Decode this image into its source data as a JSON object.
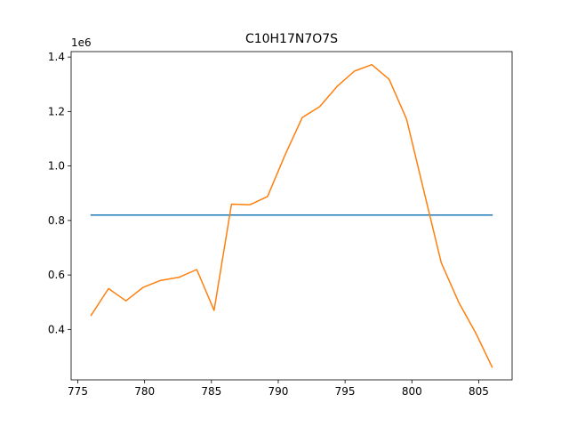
{
  "chart_data": {
    "type": "line",
    "title": "C10H17N7O7S",
    "xlabel": "",
    "ylabel": "",
    "y_offset_label": "1e6",
    "xlim": [
      774.5,
      807.5
    ],
    "ylim": [
      0.215,
      1.42
    ],
    "x_ticks": [
      775,
      780,
      785,
      790,
      795,
      800,
      805
    ],
    "y_ticks": [
      0.4,
      0.6,
      0.8,
      1.0,
      1.2,
      1.4
    ],
    "y_tick_labels": [
      "0.4",
      "0.6",
      "0.8",
      "1.0",
      "1.2",
      "1.4"
    ],
    "grid": false,
    "series": [
      {
        "color": "#1f77b4",
        "x": [
          776.0,
          806.0
        ],
        "y": [
          0.82,
          0.82
        ]
      },
      {
        "color": "#ff7f0e",
        "x": [
          776.0,
          777.3,
          778.6,
          779.9,
          781.2,
          782.6,
          783.9,
          785.2,
          786.5,
          787.9,
          789.2,
          790.5,
          791.8,
          793.1,
          794.4,
          795.7,
          797.0,
          798.3,
          799.6,
          800.9,
          802.2,
          803.5,
          804.8,
          806.0
        ],
        "y": [
          0.452,
          0.55,
          0.505,
          0.555,
          0.58,
          0.592,
          0.62,
          0.47,
          0.86,
          0.858,
          0.888,
          1.04,
          1.178,
          1.218,
          1.292,
          1.348,
          1.372,
          1.318,
          1.172,
          0.908,
          0.645,
          0.5,
          0.385,
          0.262
        ]
      }
    ]
  }
}
